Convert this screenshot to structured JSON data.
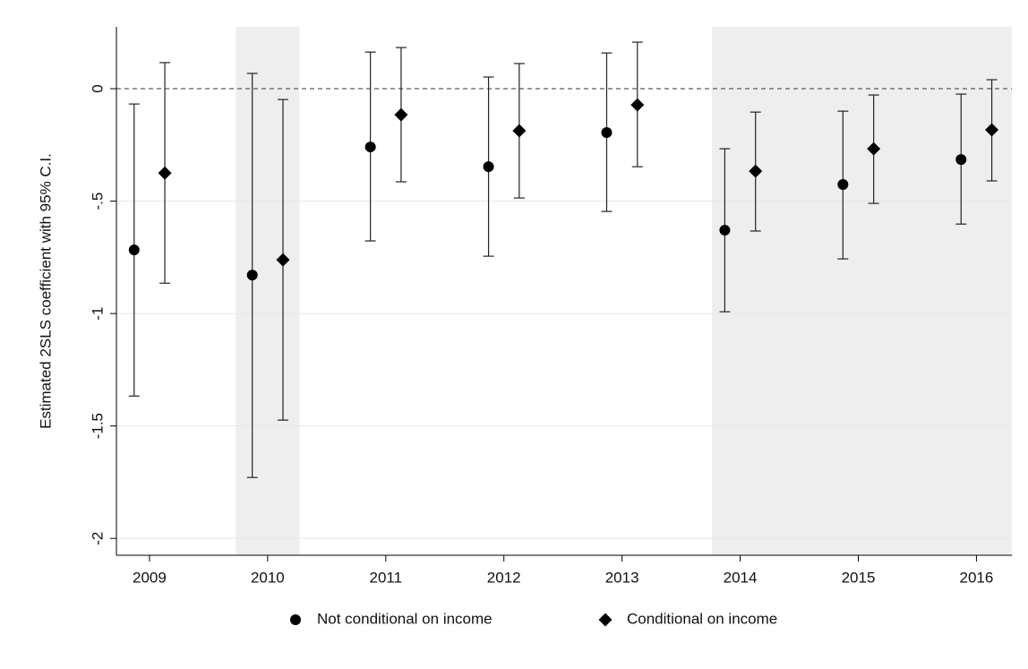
{
  "chart_data": {
    "type": "errorbar",
    "y_label": "Estimated 2SLS coefficient with 95% C.I.",
    "xlim": [
      2008.72,
      2016.3
    ],
    "xticks": [
      2009,
      2010,
      2011,
      2012,
      2013,
      2014,
      2015,
      2016
    ],
    "ylim": [
      -2.075,
      0.275
    ],
    "yticks": [
      {
        "value": 0,
        "label": "0"
      },
      {
        "value": -0.5,
        "label": "-.5"
      },
      {
        "value": -1,
        "label": "-1"
      },
      {
        "value": -1.5,
        "label": "-1.5"
      },
      {
        "value": -2,
        "label": "-2"
      }
    ],
    "grid": true,
    "reference_line": 0,
    "shaded_regions": [
      [
        2009.73,
        2010.27
      ],
      [
        2013.76,
        2016.3
      ]
    ],
    "legend": "bottom",
    "series": [
      {
        "name": "Not conditional on income",
        "color": "#000000",
        "marker": "circle",
        "x": [
          2008.87,
          2009.87,
          2010.87,
          2011.87,
          2012.87,
          2013.87,
          2014.87,
          2015.87
        ],
        "values": [
          -0.717,
          -0.829,
          -0.259,
          -0.347,
          -0.195,
          -0.629,
          -0.426,
          -0.315
        ],
        "lower": [
          -1.367,
          -1.729,
          -0.677,
          -0.745,
          -0.546,
          -0.992,
          -0.757,
          -0.602
        ],
        "upper": [
          -0.068,
          0.068,
          0.163,
          0.052,
          0.159,
          -0.267,
          -0.1,
          -0.024
        ]
      },
      {
        "name": "Conditional on income",
        "color": "#000000",
        "marker": "diamond",
        "x": [
          2009.13,
          2010.13,
          2011.13,
          2012.13,
          2013.13,
          2014.13,
          2015.13,
          2016.13
        ],
        "values": [
          -0.375,
          -0.761,
          -0.116,
          -0.187,
          -0.072,
          -0.367,
          -0.267,
          -0.183
        ],
        "lower": [
          -0.865,
          -1.474,
          -0.414,
          -0.486,
          -0.347,
          -0.633,
          -0.51,
          -0.41
        ],
        "upper": [
          0.116,
          -0.048,
          0.183,
          0.112,
          0.207,
          -0.104,
          -0.028,
          0.04
        ]
      }
    ]
  }
}
